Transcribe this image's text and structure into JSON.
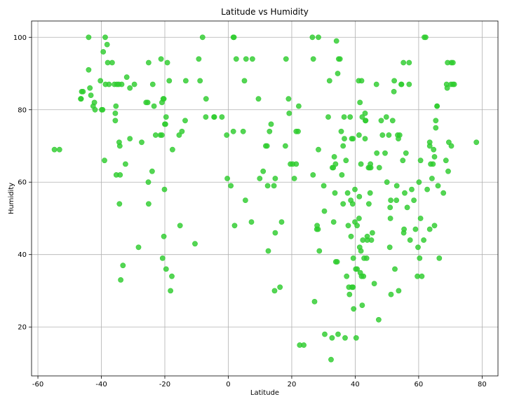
{
  "chart_data": {
    "type": "scatter",
    "title": "Latitude vs Humidity",
    "xlabel": "Latitude",
    "ylabel": "Humidity",
    "xlim": [
      -62,
      85
    ],
    "ylim": [
      6.5,
      104.5
    ],
    "xticks": [
      -60,
      -40,
      -20,
      0,
      20,
      40,
      60,
      80
    ],
    "yticks": [
      20,
      40,
      60,
      80,
      100
    ],
    "grid": true,
    "marker_color": "#2ecc2e",
    "points": [
      [
        -54.8,
        69
      ],
      [
        -53.2,
        69
      ],
      [
        -46.5,
        83
      ],
      [
        -46.2,
        85
      ],
      [
        -45.8,
        85
      ],
      [
        -46.4,
        83
      ],
      [
        -44.0,
        100
      ],
      [
        -44.0,
        91
      ],
      [
        -43.6,
        86
      ],
      [
        -43.3,
        84
      ],
      [
        -42.6,
        81
      ],
      [
        -42.2,
        82
      ],
      [
        -42.0,
        80
      ],
      [
        -40.3,
        88
      ],
      [
        -39.9,
        80
      ],
      [
        -39.6,
        80
      ],
      [
        -39.4,
        96
      ],
      [
        -39.0,
        66
      ],
      [
        -38.8,
        100
      ],
      [
        -38.7,
        87
      ],
      [
        -38.2,
        98
      ],
      [
        -38.0,
        93
      ],
      [
        -37.6,
        87
      ],
      [
        -36.6,
        93
      ],
      [
        -35.9,
        87
      ],
      [
        -35.6,
        79
      ],
      [
        -35.6,
        77
      ],
      [
        -35.4,
        81
      ],
      [
        -35.3,
        62
      ],
      [
        -35.1,
        87
      ],
      [
        -34.5,
        87
      ],
      [
        -34.4,
        71
      ],
      [
        -34.2,
        70
      ],
      [
        -34.3,
        54
      ],
      [
        -34.1,
        62
      ],
      [
        -33.9,
        33
      ],
      [
        -33.6,
        87
      ],
      [
        -33.2,
        37
      ],
      [
        -32.4,
        65
      ],
      [
        -32.0,
        89
      ],
      [
        -31.0,
        86
      ],
      [
        -31.0,
        72
      ],
      [
        -29.6,
        87
      ],
      [
        -28.3,
        42
      ],
      [
        -27.3,
        71
      ],
      [
        -25.9,
        82
      ],
      [
        -25.4,
        82
      ],
      [
        -25.2,
        60
      ],
      [
        -25.1,
        93
      ],
      [
        -25.1,
        54
      ],
      [
        -24.0,
        63
      ],
      [
        -23.8,
        87
      ],
      [
        -23.4,
        81
      ],
      [
        -22.9,
        73
      ],
      [
        -21.4,
        73
      ],
      [
        -21.2,
        94
      ],
      [
        -20.9,
        73
      ],
      [
        -20.9,
        82
      ],
      [
        -20.7,
        39
      ],
      [
        -20.5,
        83
      ],
      [
        -20.3,
        83
      ],
      [
        -20.3,
        45
      ],
      [
        -20.1,
        58
      ],
      [
        -20.0,
        76
      ],
      [
        -19.8,
        76
      ],
      [
        -19.6,
        78
      ],
      [
        -19.6,
        36
      ],
      [
        -19.2,
        93
      ],
      [
        -18.6,
        88
      ],
      [
        -18.2,
        30
      ],
      [
        -17.8,
        34
      ],
      [
        -17.6,
        69
      ],
      [
        -15.5,
        73
      ],
      [
        -15.2,
        48
      ],
      [
        -14.6,
        74
      ],
      [
        -13.6,
        77
      ],
      [
        -13.4,
        88
      ],
      [
        -10.5,
        43
      ],
      [
        -9.3,
        94
      ],
      [
        -8.9,
        88
      ],
      [
        -8.1,
        100
      ],
      [
        -7.0,
        83
      ],
      [
        -7.1,
        78
      ],
      [
        -4.4,
        78
      ],
      [
        -4.5,
        78
      ],
      [
        -2.0,
        78
      ],
      [
        -0.5,
        73
      ],
      [
        -0.3,
        61
      ],
      [
        0.8,
        59
      ],
      [
        1.6,
        100
      ],
      [
        1.8,
        100
      ],
      [
        1.6,
        74
      ],
      [
        2.0,
        48
      ],
      [
        2.5,
        94
      ],
      [
        4.7,
        74
      ],
      [
        5.1,
        88
      ],
      [
        5.4,
        55
      ],
      [
        5.6,
        94
      ],
      [
        7.3,
        49
      ],
      [
        7.6,
        94
      ],
      [
        9.5,
        83
      ],
      [
        9.9,
        61
      ],
      [
        11.0,
        63
      ],
      [
        11.8,
        70
      ],
      [
        12.2,
        70
      ],
      [
        12.4,
        59
      ],
      [
        12.6,
        41
      ],
      [
        13.0,
        74
      ],
      [
        13.5,
        76
      ],
      [
        14.4,
        59
      ],
      [
        14.6,
        30
      ],
      [
        14.8,
        61
      ],
      [
        14.8,
        46
      ],
      [
        16.3,
        31
      ],
      [
        16.8,
        49
      ],
      [
        18.0,
        70
      ],
      [
        18.2,
        94
      ],
      [
        19.0,
        83
      ],
      [
        19.2,
        79
      ],
      [
        19.6,
        65
      ],
      [
        20.3,
        65
      ],
      [
        20.8,
        61
      ],
      [
        21.4,
        74
      ],
      [
        21.4,
        65
      ],
      [
        22.0,
        74
      ],
      [
        22.2,
        81
      ],
      [
        22.5,
        15
      ],
      [
        23.8,
        15
      ],
      [
        26.5,
        100
      ],
      [
        26.8,
        94
      ],
      [
        26.7,
        62
      ],
      [
        27.2,
        27
      ],
      [
        27.9,
        47
      ],
      [
        28.0,
        48
      ],
      [
        28.3,
        47
      ],
      [
        28.4,
        100
      ],
      [
        28.4,
        69
      ],
      [
        28.7,
        41
      ],
      [
        30.3,
        52
      ],
      [
        30.1,
        59
      ],
      [
        30.4,
        18
      ],
      [
        31.5,
        78
      ],
      [
        31.9,
        88
      ],
      [
        32.4,
        11
      ],
      [
        32.7,
        17
      ],
      [
        32.8,
        64
      ],
      [
        33.1,
        64
      ],
      [
        33.2,
        49
      ],
      [
        33.4,
        67
      ],
      [
        33.8,
        65
      ],
      [
        33.6,
        57
      ],
      [
        33.9,
        38
      ],
      [
        34.1,
        99
      ],
      [
        34.3,
        38
      ],
      [
        34.5,
        90
      ],
      [
        34.6,
        18
      ],
      [
        34.8,
        94
      ],
      [
        35.2,
        94
      ],
      [
        35.6,
        74
      ],
      [
        35.8,
        62
      ],
      [
        36.2,
        54
      ],
      [
        36.2,
        70
      ],
      [
        36.5,
        78
      ],
      [
        36.6,
        72
      ],
      [
        36.8,
        17
      ],
      [
        37.1,
        66
      ],
      [
        37.3,
        34
      ],
      [
        37.6,
        57
      ],
      [
        37.8,
        48
      ],
      [
        38.0,
        31
      ],
      [
        38.2,
        29
      ],
      [
        38.4,
        78
      ],
      [
        38.6,
        55
      ],
      [
        38.7,
        45
      ],
      [
        38.9,
        72
      ],
      [
        39.0,
        31
      ],
      [
        39.3,
        31
      ],
      [
        39.3,
        72
      ],
      [
        39.2,
        54
      ],
      [
        39.4,
        39
      ],
      [
        39.5,
        25
      ],
      [
        39.9,
        49
      ],
      [
        39.9,
        58
      ],
      [
        40.2,
        36
      ],
      [
        40.3,
        17
      ],
      [
        40.6,
        48
      ],
      [
        40.6,
        36
      ],
      [
        41.1,
        88
      ],
      [
        41.2,
        73
      ],
      [
        41.2,
        50
      ],
      [
        41.3,
        56
      ],
      [
        41.5,
        82
      ],
      [
        41.4,
        42
      ],
      [
        41.6,
        35
      ],
      [
        41.8,
        65
      ],
      [
        41.8,
        41
      ],
      [
        42.0,
        34
      ],
      [
        42.0,
        88
      ],
      [
        42.2,
        78
      ],
      [
        42.2,
        26
      ],
      [
        42.4,
        44
      ],
      [
        42.6,
        34
      ],
      [
        42.8,
        39
      ],
      [
        43.1,
        79
      ],
      [
        43.2,
        77
      ],
      [
        43.1,
        72
      ],
      [
        43.3,
        77
      ],
      [
        43.6,
        39
      ],
      [
        43.8,
        45
      ],
      [
        43.8,
        44
      ],
      [
        44.2,
        64
      ],
      [
        44.3,
        54
      ],
      [
        44.5,
        64
      ],
      [
        44.7,
        57
      ],
      [
        44.8,
        65
      ],
      [
        44.9,
        64
      ],
      [
        45.1,
        44
      ],
      [
        45.4,
        46
      ],
      [
        46.0,
        32
      ],
      [
        46.7,
        87
      ],
      [
        46.8,
        68
      ],
      [
        47.4,
        22
      ],
      [
        47.6,
        64
      ],
      [
        48.2,
        77
      ],
      [
        48.6,
        73
      ],
      [
        49.4,
        68
      ],
      [
        49.8,
        78
      ],
      [
        50.0,
        60
      ],
      [
        50.6,
        73
      ],
      [
        50.9,
        42
      ],
      [
        51.0,
        53
      ],
      [
        51.1,
        50
      ],
      [
        51.2,
        55
      ],
      [
        51.3,
        29
      ],
      [
        51.8,
        77
      ],
      [
        52.2,
        85
      ],
      [
        52.3,
        88
      ],
      [
        52.5,
        36
      ],
      [
        53.0,
        55
      ],
      [
        53.1,
        59
      ],
      [
        53.4,
        73
      ],
      [
        53.6,
        72
      ],
      [
        53.7,
        30
      ],
      [
        54.0,
        73
      ],
      [
        54.5,
        87
      ],
      [
        54.6,
        87
      ],
      [
        55.0,
        66
      ],
      [
        55.2,
        93
      ],
      [
        55.3,
        46
      ],
      [
        55.4,
        47
      ],
      [
        55.6,
        57
      ],
      [
        56.0,
        68
      ],
      [
        56.4,
        53
      ],
      [
        57.0,
        87
      ],
      [
        57.0,
        93
      ],
      [
        57.3,
        44
      ],
      [
        57.8,
        58
      ],
      [
        58.5,
        55
      ],
      [
        59.0,
        47
      ],
      [
        59.6,
        34
      ],
      [
        59.8,
        42
      ],
      [
        60.1,
        60
      ],
      [
        60.3,
        39
      ],
      [
        60.6,
        50
      ],
      [
        60.6,
        66
      ],
      [
        61.0,
        34
      ],
      [
        61.6,
        44
      ],
      [
        61.8,
        100
      ],
      [
        62.2,
        100
      ],
      [
        62.7,
        58
      ],
      [
        63.5,
        71
      ],
      [
        63.5,
        70
      ],
      [
        63.5,
        47
      ],
      [
        63.8,
        65
      ],
      [
        64.2,
        61
      ],
      [
        64.5,
        65
      ],
      [
        64.7,
        69
      ],
      [
        65.0,
        67
      ],
      [
        65.0,
        48
      ],
      [
        65.4,
        75
      ],
      [
        65.4,
        77
      ],
      [
        65.8,
        81
      ],
      [
        65.8,
        81
      ],
      [
        66.1,
        59
      ],
      [
        66.5,
        39
      ],
      [
        67.8,
        57
      ],
      [
        68.6,
        66
      ],
      [
        68.8,
        87
      ],
      [
        69.0,
        86
      ],
      [
        69.1,
        93
      ],
      [
        69.3,
        63
      ],
      [
        69.5,
        71
      ],
      [
        70.2,
        87
      ],
      [
        70.3,
        70
      ],
      [
        70.3,
        93
      ],
      [
        70.8,
        87
      ],
      [
        70.8,
        93
      ],
      [
        71.2,
        87
      ],
      [
        78.2,
        71
      ]
    ]
  }
}
